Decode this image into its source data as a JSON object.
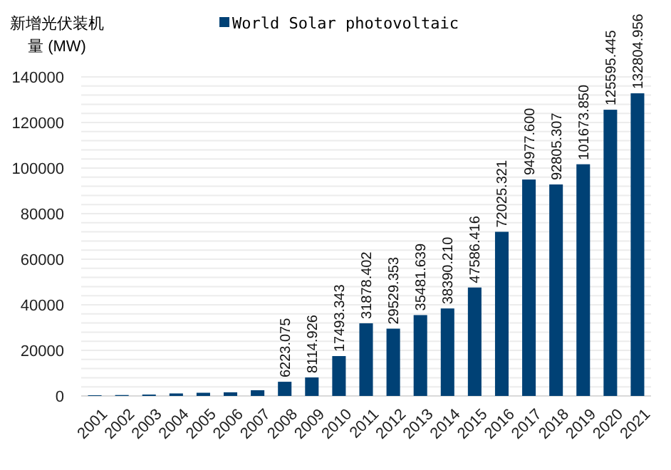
{
  "chart_data": {
    "type": "bar",
    "ylabel": "新增光伏装机量 (MW)",
    "categories": [
      "2001",
      "2002",
      "2003",
      "2004",
      "2005",
      "2006",
      "2007",
      "2008",
      "2009",
      "2010",
      "2011",
      "2012",
      "2013",
      "2014",
      "2015",
      "2016",
      "2017",
      "2018",
      "2019",
      "2020",
      "2021"
    ],
    "series": [
      {
        "name": "World Solar photovoltaic",
        "color": "#004175",
        "values": [
          300,
          400,
          600,
          1100,
          1400,
          1600,
          2500,
          6223.075,
          8114.926,
          17493.343,
          31878.402,
          29529.353,
          35481.639,
          38390.21,
          47586.416,
          72025.321,
          94977.6,
          92805.307,
          101673.85,
          125595.445,
          132804.956
        ],
        "value_labels": [
          null,
          null,
          null,
          null,
          null,
          null,
          null,
          "6223.075",
          "8114.926",
          "17493.343",
          "31878.402",
          "29529.353",
          "35481.639",
          "38390.210",
          "47586.416",
          "72025.321",
          "94977.600",
          "92805.307",
          "101673.850",
          "125595.445",
          "132804.956"
        ]
      }
    ],
    "ylim": [
      0,
      140000
    ],
    "yticks": [
      0,
      {
        "value": 4000,
        "label": null
      },
      {
        "value": 8000,
        "label": null
      },
      {
        "value": 12000,
        "label": null
      },
      {
        "value": 16000,
        "label": null
      },
      20000,
      {
        "value": 24000,
        "label": null
      },
      {
        "value": 28000,
        "label": null
      },
      {
        "value": 32000,
        "label": null
      },
      {
        "value": 36000,
        "label": null
      },
      40000,
      {
        "value": 44000,
        "label": null
      },
      {
        "value": 48000,
        "label": null
      },
      {
        "value": 52000,
        "label": null
      },
      {
        "value": 56000,
        "label": null
      },
      60000,
      {
        "value": 64000,
        "label": null
      },
      {
        "value": 68000,
        "label": null
      },
      {
        "value": 72000,
        "label": null
      },
      {
        "value": 76000,
        "label": null
      },
      80000,
      {
        "value": 84000,
        "label": null
      },
      {
        "value": 88000,
        "label": null
      },
      {
        "value": 92000,
        "label": null
      },
      {
        "value": 96000,
        "label": null
      },
      100000,
      {
        "value": 104000,
        "label": null
      },
      {
        "value": 108000,
        "label": null
      },
      {
        "value": 112000,
        "label": null
      },
      {
        "value": 116000,
        "label": null
      },
      120000,
      {
        "value": 124000,
        "label": null
      },
      {
        "value": 128000,
        "label": null
      },
      {
        "value": 132000,
        "label": null
      },
      {
        "value": 136000,
        "label": null
      },
      140000
    ],
    "grid": "y",
    "legend": "top"
  }
}
